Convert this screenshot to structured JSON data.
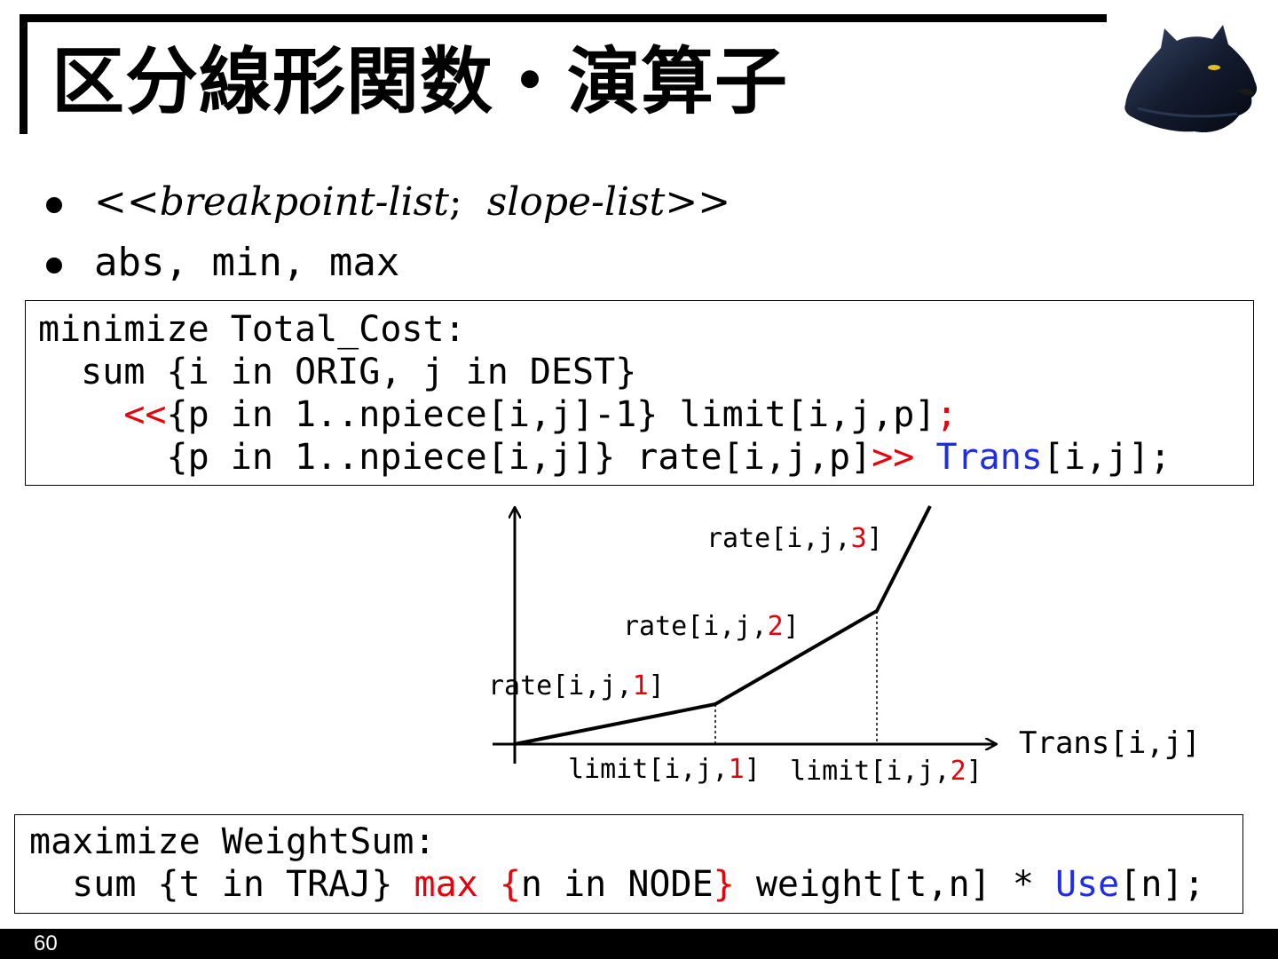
{
  "slide": {
    "title": "区分線形関数・演算子",
    "page_number": "60"
  },
  "bullets": {
    "b1": {
      "open": "<<",
      "breakpoint_list": "breakpoint-list",
      "semicolon": ";",
      "slope_list": "slope-list",
      "close": ">>"
    },
    "b2": {
      "text": "abs, min, max"
    }
  },
  "code1": {
    "l1": "minimize Total_Cost:",
    "l2": "  sum {i in ORIG, j in DEST}",
    "l3_indent": "    ",
    "l3_open": "<<",
    "l3_rest": "{p in 1..npiece[i,j]-1} limit[i,j,p]",
    "l3_semi": ";",
    "l4": "      {p in 1..npiece[i,j]} rate[i,j,p]",
    "l4_close": ">>",
    "l4_space": " ",
    "l4_var": "Trans",
    "l4_end": "[i,j];"
  },
  "code2": {
    "l1": "maximize WeightSum:",
    "l2_a": "  sum {t in TRAJ} ",
    "l2_max": "max",
    "l2_space": " ",
    "l2_lbrace": "{",
    "l2_mid": "n in NODE",
    "l2_rbrace": "}",
    "l2_b": " weight[t,n] * ",
    "l2_var": "Use",
    "l2_end": "[n];"
  },
  "figure": {
    "x_axis_label": "Trans[i,j]",
    "rate_prefix": "rate[i,j,",
    "limit_prefix": "limit[i,j,",
    "close_bracket": "]",
    "idx1": "1",
    "idx2": "2",
    "idx3": "3"
  },
  "colors": {
    "highlight_red": "#e8000b",
    "variable_blue": "#1f2ee6"
  },
  "icons": {
    "logo": "black-panther-head-icon"
  }
}
